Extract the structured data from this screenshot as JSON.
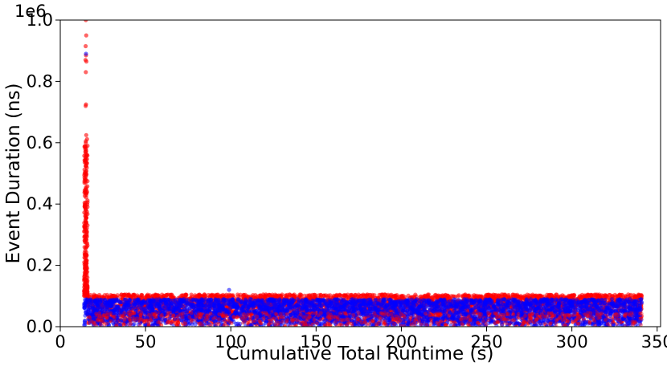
{
  "chart_data": {
    "type": "scatter",
    "title": "",
    "xlabel": "Cumulative Total Runtime (s)",
    "ylabel": "Event Duration (ns)",
    "y_offset_label": "1e6",
    "xlim": [
      0,
      352
    ],
    "ylim": [
      0,
      1000000
    ],
    "x_ticks": [
      0,
      50,
      100,
      150,
      200,
      250,
      300,
      350
    ],
    "x_tick_labels": [
      "0",
      "50",
      "100",
      "150",
      "200",
      "250",
      "300",
      "350"
    ],
    "y_ticks": [
      0,
      200000,
      400000,
      600000,
      800000,
      1000000
    ],
    "y_tick_labels": [
      "0.0",
      "0.2",
      "0.4",
      "0.6",
      "0.8",
      "1.0"
    ],
    "grid": false,
    "legend": "none",
    "series": [
      {
        "color": "#ff0000",
        "x_range": [
          14,
          341
        ],
        "bulk_y_range": [
          0,
          105000
        ],
        "spike": {
          "x_range": [
            14,
            16
          ],
          "points": [
            {
              "x": 15.0,
              "y": 1000000
            },
            {
              "x": 15.2,
              "y": 950000
            },
            {
              "x": 14.9,
              "y": 915000
            },
            {
              "x": 15.1,
              "y": 885000
            },
            {
              "x": 14.8,
              "y": 870000
            },
            {
              "x": 15.3,
              "y": 865000
            },
            {
              "x": 15.0,
              "y": 830000
            },
            {
              "x": 15.1,
              "y": 725000
            },
            {
              "x": 14.9,
              "y": 720000
            },
            {
              "x": 15.2,
              "y": 625000
            },
            {
              "x": 15.0,
              "y": 605000
            },
            {
              "x": 15.1,
              "y": 580000
            },
            {
              "x": 15.0,
              "y": 545000
            },
            {
              "x": 15.2,
              "y": 525000
            },
            {
              "x": 15.1,
              "y": 500000
            },
            {
              "x": 15.0,
              "y": 480000
            },
            {
              "x": 15.1,
              "y": 455000
            },
            {
              "x": 15.2,
              "y": 430000
            },
            {
              "x": 15.0,
              "y": 405000
            },
            {
              "x": 15.1,
              "y": 385000
            },
            {
              "x": 15.0,
              "y": 360000
            },
            {
              "x": 15.2,
              "y": 335000
            },
            {
              "x": 15.1,
              "y": 310000
            },
            {
              "x": 15.0,
              "y": 285000
            },
            {
              "x": 15.1,
              "y": 260000
            },
            {
              "x": 15.2,
              "y": 235000
            },
            {
              "x": 15.0,
              "y": 210000
            },
            {
              "x": 15.1,
              "y": 185000
            },
            {
              "x": 15.2,
              "y": 160000
            },
            {
              "x": 15.0,
              "y": 135000
            },
            {
              "x": 15.1,
              "y": 115000
            }
          ]
        }
      },
      {
        "color": "#0000ff",
        "x_range": [
          14,
          341
        ],
        "bulk_y_range": [
          0,
          90000
        ],
        "outliers": [
          {
            "x": 15.1,
            "y": 890000
          },
          {
            "x": 99,
            "y": 120000
          }
        ]
      }
    ]
  }
}
